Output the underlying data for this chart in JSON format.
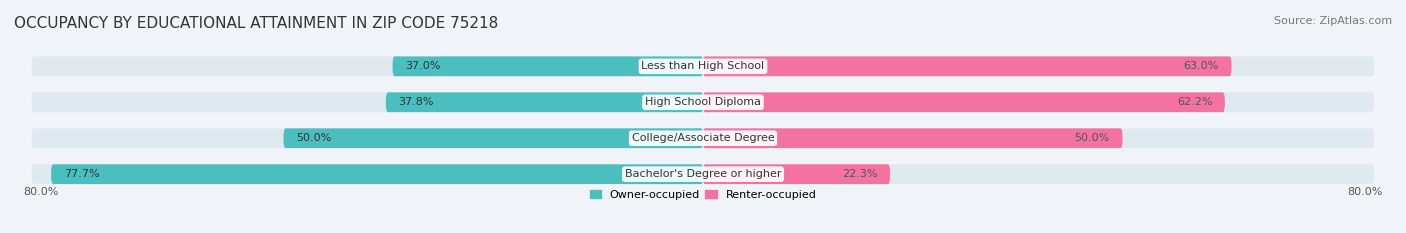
{
  "title": "OCCUPANCY BY EDUCATIONAL ATTAINMENT IN ZIP CODE 75218",
  "source": "Source: ZipAtlas.com",
  "categories": [
    "Less than High School",
    "High School Diploma",
    "College/Associate Degree",
    "Bachelor's Degree or higher"
  ],
  "owner_values": [
    37.0,
    37.8,
    50.0,
    77.7
  ],
  "renter_values": [
    63.0,
    62.2,
    50.0,
    22.3
  ],
  "owner_color": "#4bbfbf",
  "renter_color": "#f472a0",
  "owner_label": "Owner-occupied",
  "renter_label": "Renter-occupied",
  "xlim_left": -80.0,
  "xlim_right": 80.0,
  "x_left_label": "80.0%",
  "x_right_label": "80.0%",
  "background_color": "#f0f4f8",
  "bar_background": "#e0e8f0",
  "title_fontsize": 11,
  "source_fontsize": 8,
  "label_fontsize": 8,
  "tick_fontsize": 8,
  "bar_height": 0.55,
  "bar_gap": 0.18
}
